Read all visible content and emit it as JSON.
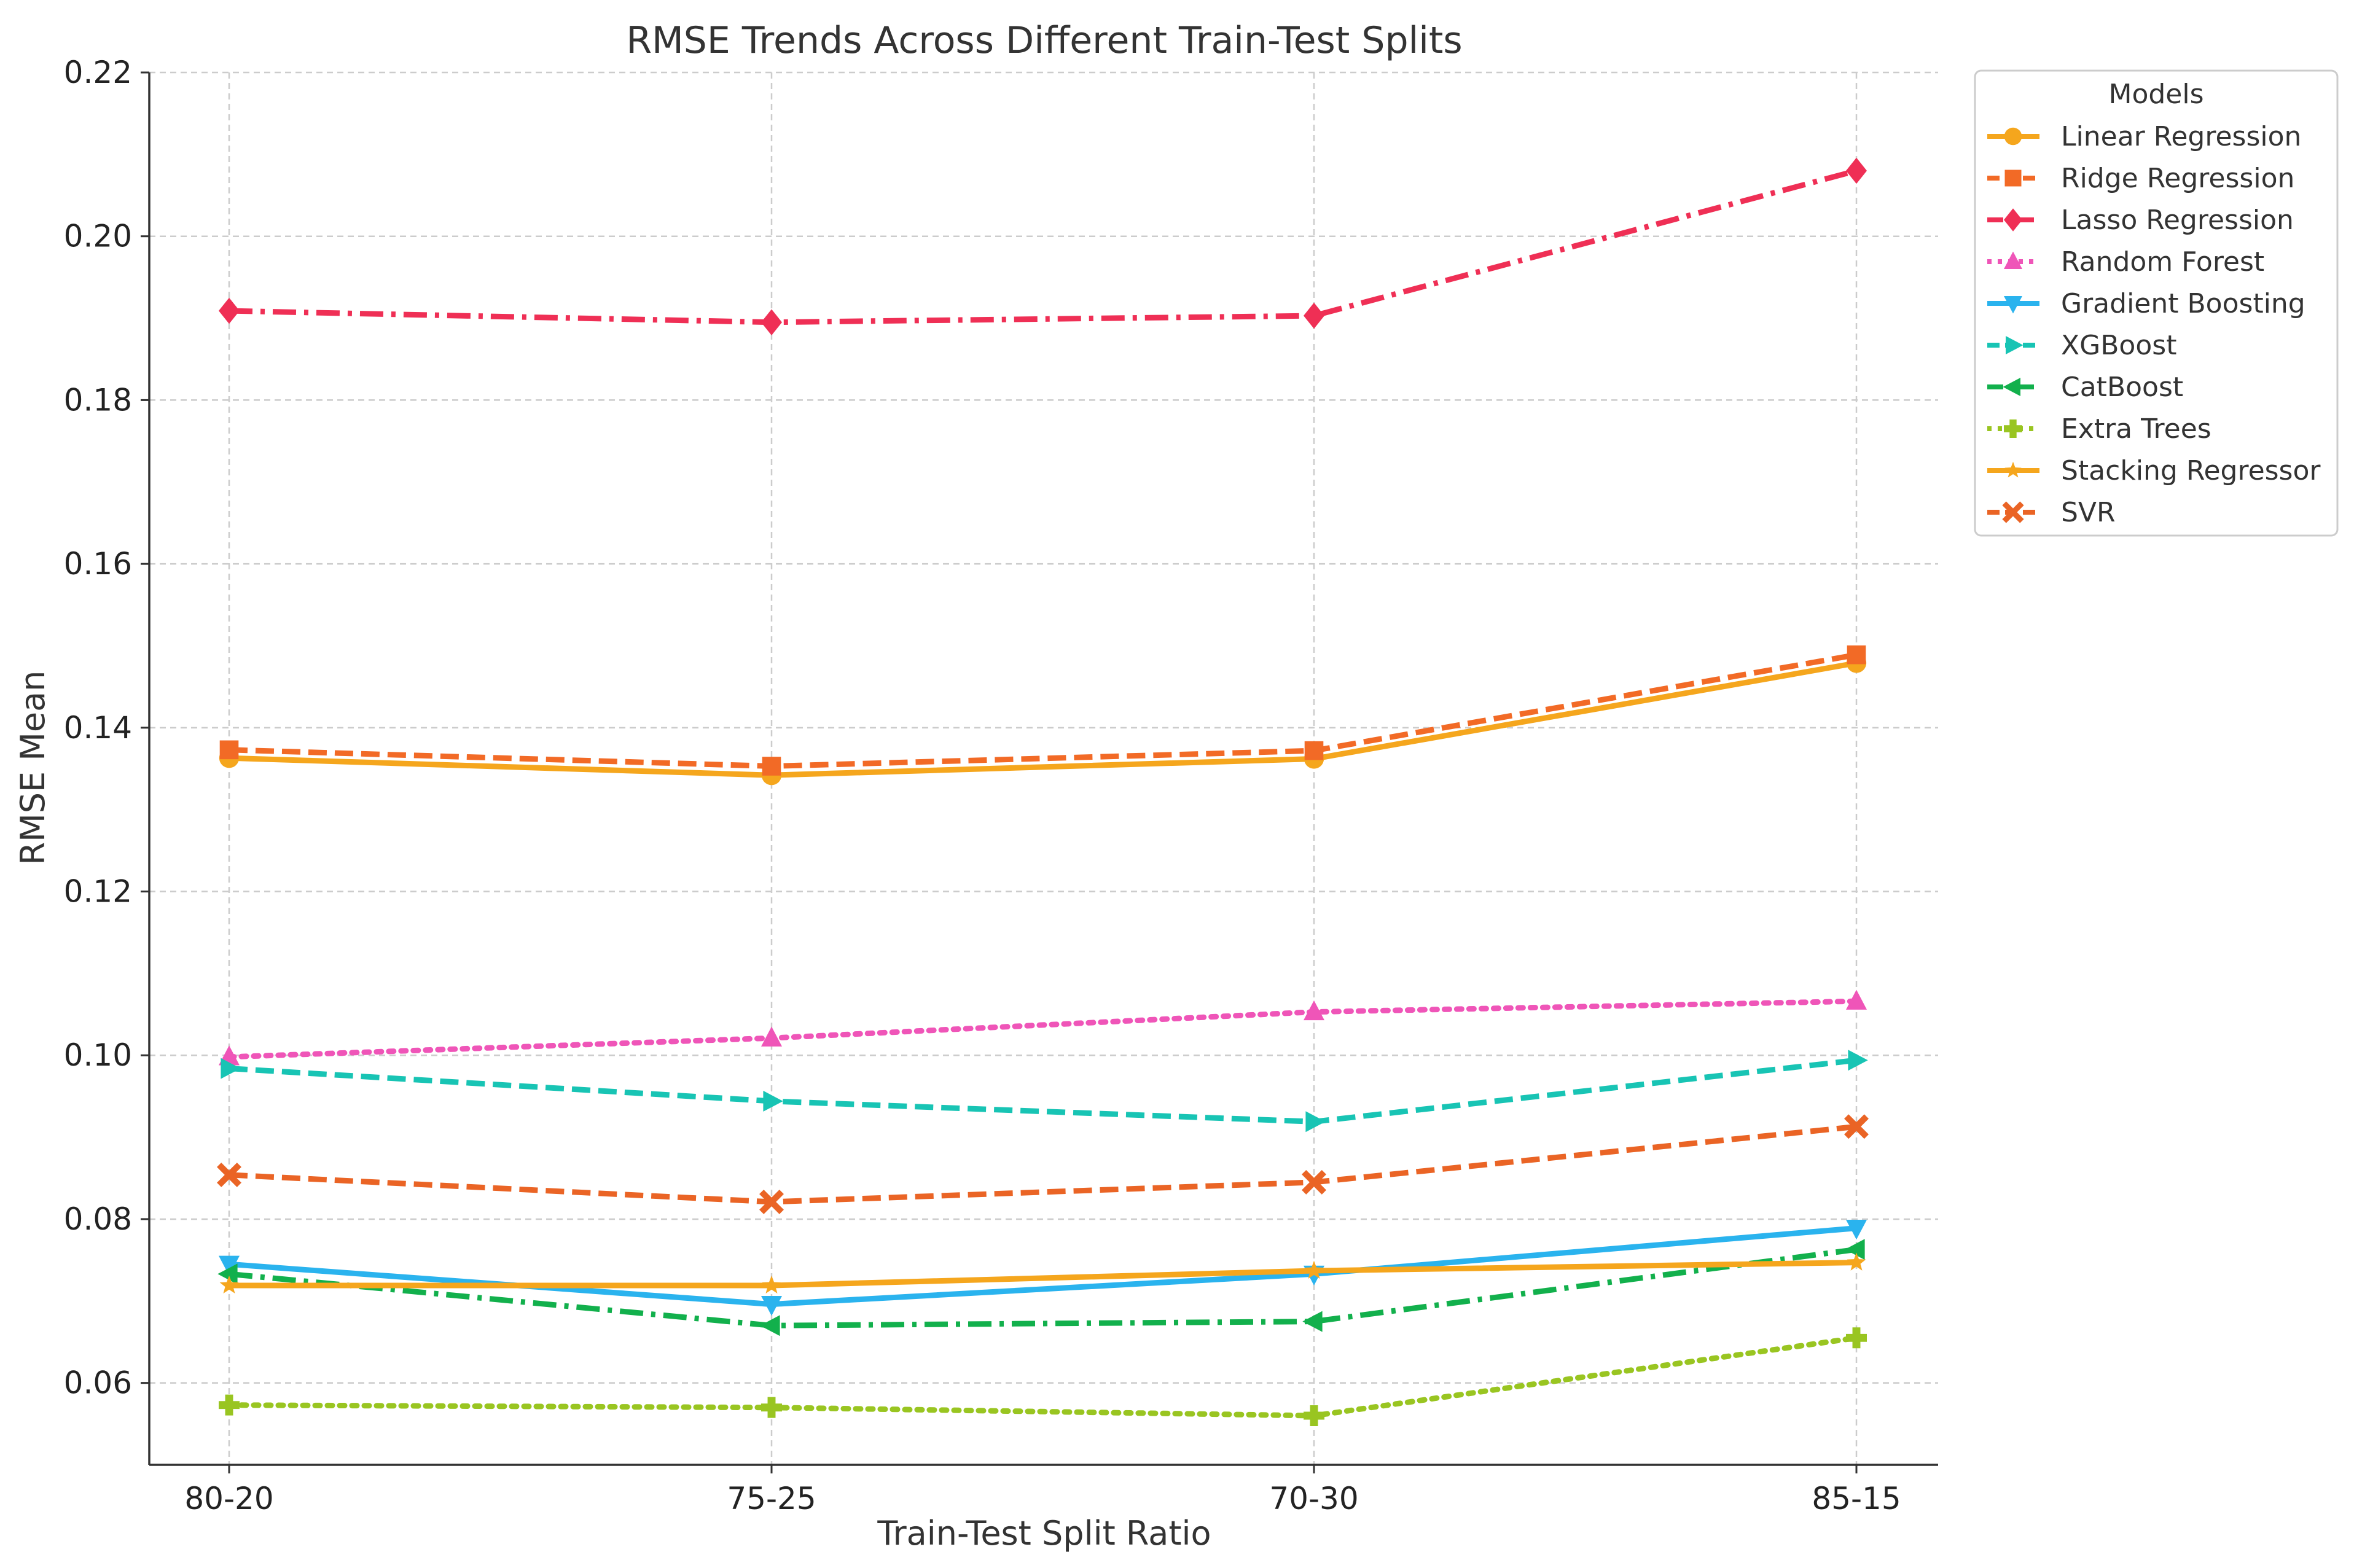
{
  "chart_data": {
    "type": "line",
    "title": "RMSE Trends Across Different Train-Test Splits",
    "xlabel": "Train-Test Split Ratio",
    "ylabel": "RMSE Mean",
    "categories": [
      "80-20",
      "75-25",
      "70-30",
      "85-15"
    ],
    "ylim": [
      0.05,
      0.22
    ],
    "yticks": [
      0.06,
      0.08,
      0.1,
      0.12,
      0.14,
      0.16,
      0.18,
      0.2,
      0.22
    ],
    "ytick_labels": [
      "0.06",
      "0.08",
      "0.10",
      "0.12",
      "0.14",
      "0.16",
      "0.18",
      "0.20",
      "0.22"
    ],
    "grid": true,
    "legend": {
      "title": "Models",
      "position": "outside-top-right"
    },
    "series": [
      {
        "name": "Linear Regression",
        "values": [
          0.1363,
          0.1342,
          0.1362,
          0.1479
        ],
        "color": "#f5a61d",
        "line_style": "solid",
        "marker": "circle"
      },
      {
        "name": "Ridge Regression",
        "values": [
          0.1373,
          0.1353,
          0.1372,
          0.1489
        ],
        "color": "#f26a26",
        "line_style": "dashed",
        "marker": "square"
      },
      {
        "name": "Lasso Regression",
        "values": [
          0.1909,
          0.1895,
          0.1903,
          0.208
        ],
        "color": "#ef2f55",
        "line_style": "dashdot",
        "marker": "diamond"
      },
      {
        "name": "Random Forest",
        "values": [
          0.0998,
          0.1021,
          0.1053,
          0.1066
        ],
        "color": "#ef55b8",
        "line_style": "dotted",
        "marker": "triangle-up"
      },
      {
        "name": "Gradient Boosting",
        "values": [
          0.0745,
          0.0696,
          0.0733,
          0.0789
        ],
        "color": "#2ab3ee",
        "line_style": "solid",
        "marker": "triangle-down"
      },
      {
        "name": "XGBoost",
        "values": [
          0.0984,
          0.0944,
          0.0919,
          0.0994
        ],
        "color": "#18c4b4",
        "line_style": "dashed",
        "marker": "triangle-right"
      },
      {
        "name": "CatBoost",
        "values": [
          0.0733,
          0.067,
          0.0675,
          0.0763
        ],
        "color": "#12b04c",
        "line_style": "dashdot",
        "marker": "triangle-left"
      },
      {
        "name": "Extra Trees",
        "values": [
          0.0573,
          0.057,
          0.056,
          0.0655
        ],
        "color": "#99c521",
        "line_style": "dotted",
        "marker": "plus"
      },
      {
        "name": "Stacking Regressor",
        "values": [
          0.0719,
          0.0719,
          0.0737,
          0.0747
        ],
        "color": "#f5a61d",
        "line_style": "solid",
        "marker": "star"
      },
      {
        "name": "SVR",
        "values": [
          0.0854,
          0.0821,
          0.0845,
          0.0913
        ],
        "color": "#ea6425",
        "line_style": "dashed",
        "marker": "x"
      }
    ]
  }
}
